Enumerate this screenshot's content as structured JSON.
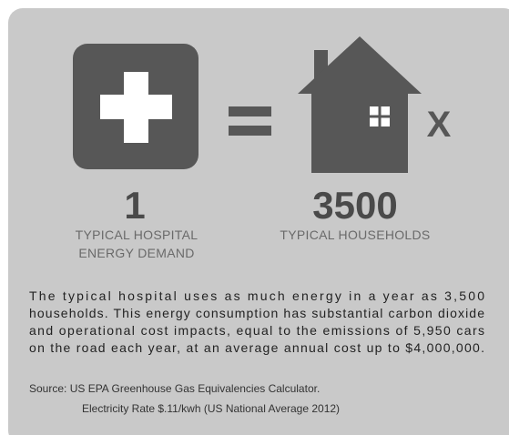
{
  "hospital": {
    "count": "1",
    "label": [
      "TYPICAL HOSPITAL",
      "ENERGY DEMAND"
    ]
  },
  "households": {
    "count": "3500",
    "label": [
      "TYPICAL HOUSEHOLDS"
    ],
    "multiplier": "X"
  },
  "equals": "=",
  "description": [
    "The typical hospital uses as much energy in a year as 3,500",
    "households. This energy consumption has substantial carbon dioxide",
    "and operational cost impacts, equal to the emissions of 5,950 cars",
    "on the road each year, at an average annual cost up to $4,000,000."
  ],
  "source": [
    "Source: US EPA Greenhouse Gas Equivalencies Calculator.",
    "Electricity Rate $.11/kwh (US National Average 2012)"
  ]
}
